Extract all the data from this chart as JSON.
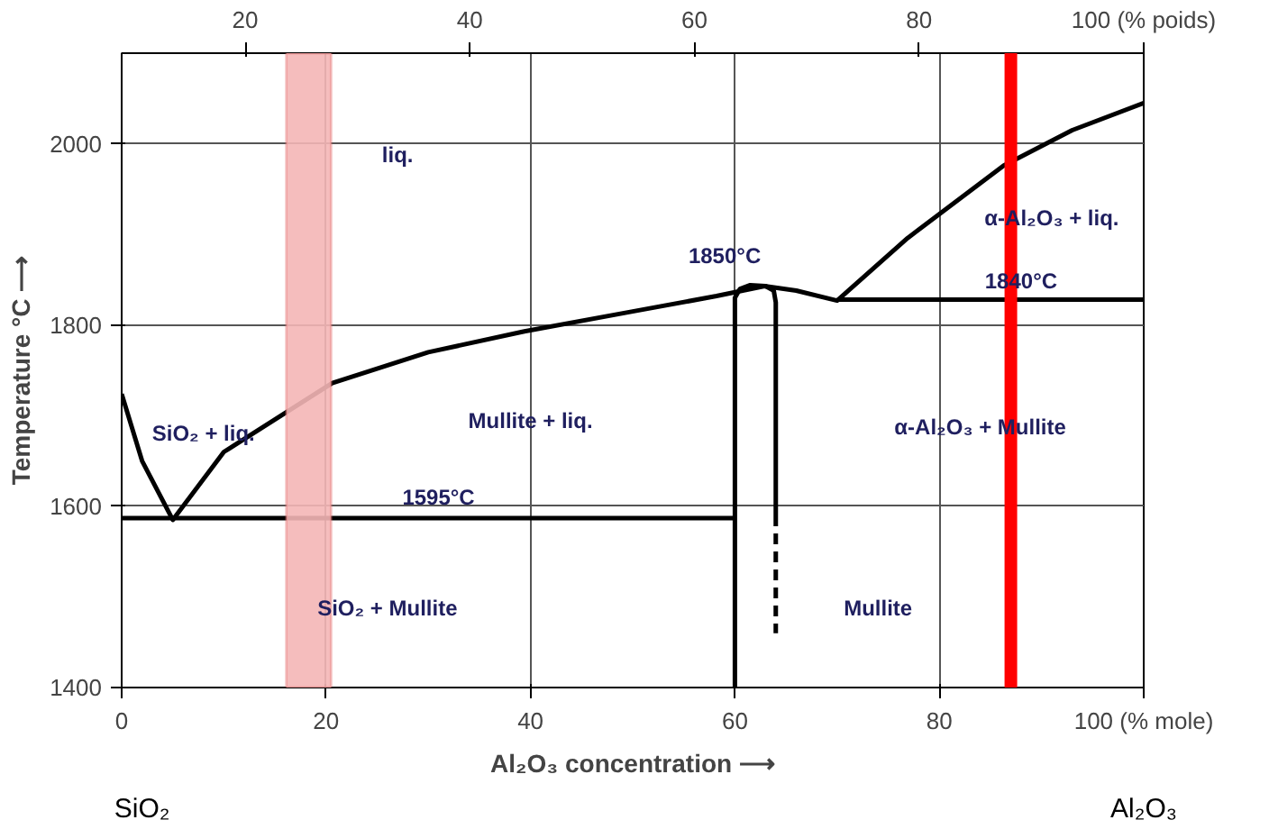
{
  "chart_data": {
    "type": "line",
    "xlabel": "Al₂O₃ concentration ⟶",
    "ylabel": "Temperature °C ⟶",
    "xlim": [
      0,
      100
    ],
    "ylim": [
      1400,
      2100
    ],
    "xticks": [
      0,
      20,
      40,
      60,
      80,
      {
        "value": 100,
        "label": "100 (% mole)"
      }
    ],
    "yticks": [
      1400,
      1600,
      1800,
      2000
    ],
    "x2lim": [
      9,
      100
    ],
    "x2ticks": [
      20,
      40,
      60,
      80,
      {
        "value": 100,
        "label": "100 (% poids)"
      }
    ],
    "grid": true,
    "marker": "none",
    "line_style": "solid",
    "series": [
      {
        "color": "#000000",
        "x": [
          0,
          2,
          5,
          10,
          20.6,
          30,
          39.4,
          50,
          58.2,
          62.9,
          66,
          70,
          76.9,
          86.3,
          93,
          100
        ],
        "values": [
          1724,
          1650,
          1585,
          1660,
          1736,
          1770,
          1793,
          1815,
          1832,
          1843,
          1838,
          1827,
          1896,
          1976,
          2015,
          2045
        ]
      },
      {
        "color": "#000000",
        "x": [
          0,
          60
        ],
        "values": [
          1587,
          1587
        ]
      },
      {
        "color": "#000000",
        "x": [
          70,
          100
        ],
        "values": [
          1828,
          1828
        ]
      },
      {
        "color": "#000000",
        "x": [
          60,
          60,
          60.5,
          61.5,
          63,
          63.8,
          64,
          64
        ],
        "values": [
          1400,
          1830,
          1840,
          1844,
          1843,
          1838,
          1825,
          1590
        ]
      },
      {
        "color": "#000000",
        "x": [
          64,
          64
        ],
        "values": [
          1590,
          1460
        ],
        "line_style": "dashed"
      }
    ],
    "bands": [
      {
        "axis": "x",
        "from": 16.1,
        "to": 20.5,
        "color": "#f4b6b6"
      }
    ],
    "ref_lines": [
      {
        "axis": "x",
        "value": 87,
        "color": "#ff0000"
      }
    ],
    "annotations": [
      "liq.",
      "α-Al₂O₃ + liq.",
      "1850°C",
      "1840°C",
      "SiO₂ + liq.",
      "Mullite + liq.",
      "α-Al₂O₃ + Mullite",
      "1595°C",
      "SiO₂ + Mullite",
      "Mullite",
      "SiO₂",
      "Al₂O₃"
    ]
  }
}
